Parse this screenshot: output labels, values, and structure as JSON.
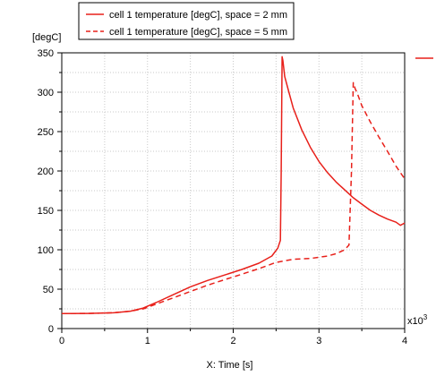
{
  "chart_data": {
    "type": "line",
    "ylabel": "[degC]",
    "xlabel": "X: Time [s]",
    "x_multiplier": "x10",
    "x_multiplier_exp": "3",
    "xlim": [
      0,
      4
    ],
    "ylim": [
      0,
      350
    ],
    "x_ticks": [
      0,
      1,
      2,
      3,
      4
    ],
    "y_ticks": [
      0,
      50,
      100,
      150,
      200,
      250,
      300,
      350
    ],
    "grid": true,
    "legend_position": "top-left",
    "series": [
      {
        "name": "cell 1 temperature  [degC], space = 2 mm",
        "style": "solid",
        "color": "#e8201a",
        "x": [
          0,
          0.3,
          0.6,
          0.8,
          0.95,
          1.1,
          1.3,
          1.5,
          1.7,
          1.9,
          2.1,
          2.3,
          2.45,
          2.52,
          2.55,
          2.56,
          2.57,
          2.58,
          2.6,
          2.65,
          2.7,
          2.8,
          2.9,
          3.0,
          3.1,
          3.2,
          3.3,
          3.4,
          3.5,
          3.6,
          3.7,
          3.8,
          3.9,
          3.95,
          4.0
        ],
        "y": [
          19,
          19.2,
          20,
          22,
          26,
          33,
          43,
          53,
          61,
          68,
          75,
          83,
          92,
          102,
          112,
          200,
          345,
          340,
          320,
          300,
          280,
          252,
          230,
          212,
          198,
          186,
          176,
          166,
          158,
          150,
          144,
          139,
          135,
          131,
          134
        ]
      },
      {
        "name": "cell 1 temperature  [degC], space = 5 mm",
        "style": "dashed",
        "color": "#e8201a",
        "x": [
          0,
          0.3,
          0.6,
          0.8,
          0.95,
          1.1,
          1.3,
          1.5,
          1.7,
          1.9,
          2.1,
          2.3,
          2.5,
          2.7,
          2.9,
          3.1,
          3.2,
          3.3,
          3.35,
          3.38,
          3.4,
          3.41,
          3.42,
          3.45,
          3.5,
          3.6,
          3.7,
          3.8,
          3.9,
          4.0
        ],
        "y": [
          19,
          19.2,
          20,
          22,
          25,
          31,
          39,
          47,
          55,
          62,
          69,
          76,
          84,
          88,
          89,
          92,
          95,
          100,
          106,
          200,
          312,
          310,
          305,
          298,
          283,
          262,
          243,
          225,
          206,
          190
        ]
      }
    ]
  }
}
